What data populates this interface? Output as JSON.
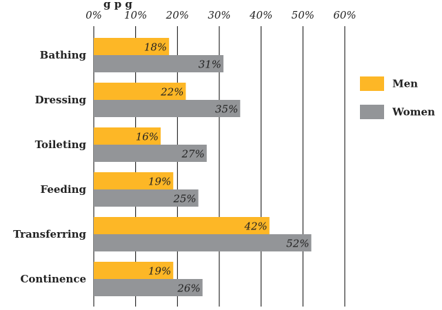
{
  "chart_data": {
    "type": "bar",
    "orientation": "horizontal",
    "title": "",
    "visible_title_fragment": "g  p  g",
    "categories": [
      "Bathing",
      "Dressing",
      "Toileting",
      "Feeding",
      "Transferring",
      "Continence"
    ],
    "series": [
      {
        "name": "Men",
        "values": [
          18,
          22,
          16,
          19,
          42,
          19
        ],
        "color": "#FDB726"
      },
      {
        "name": "Women",
        "values": [
          31,
          35,
          27,
          25,
          52,
          26
        ],
        "color": "#939598"
      }
    ],
    "value_suffix": "%",
    "xlim": [
      0,
      60
    ],
    "xticks": [
      0,
      10,
      20,
      30,
      40,
      50,
      60
    ],
    "tick_labels": [
      "0%",
      "10%",
      "20%",
      "30%",
      "40%",
      "50%",
      "60%"
    ],
    "x_axis_position": "top",
    "grid": true,
    "legend_position": "right"
  }
}
